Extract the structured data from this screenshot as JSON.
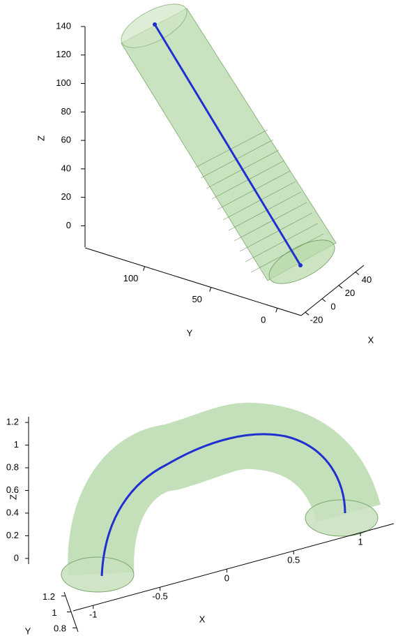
{
  "chart_data": [
    {
      "type": "tube3d",
      "xlabel": "X",
      "ylabel": "Y",
      "zlabel": "Z",
      "xlim": [
        -25,
        50
      ],
      "xticks": [
        -20,
        0,
        20,
        40
      ],
      "ylim": [
        -18,
        145
      ],
      "yticks": [
        0,
        50,
        100
      ],
      "zlim": [
        -15,
        140
      ],
      "zticks": [
        0,
        20,
        40,
        60,
        80,
        100,
        120,
        140
      ]
    },
    {
      "type": "tube3d",
      "xlabel": "X",
      "ylabel": "Y",
      "zlabel": "Z",
      "xlim": [
        -1.15,
        1.25
      ],
      "xticks": [
        -1,
        -0.5,
        0,
        0.5,
        1
      ],
      "ylim": [
        0.75,
        1.25
      ],
      "yticks": [
        0.8,
        1,
        1.2
      ],
      "zlim": [
        -0.05,
        1.25
      ],
      "zticks": [
        0,
        0.2,
        0.4,
        0.6,
        0.8,
        1,
        1.2
      ]
    }
  ]
}
